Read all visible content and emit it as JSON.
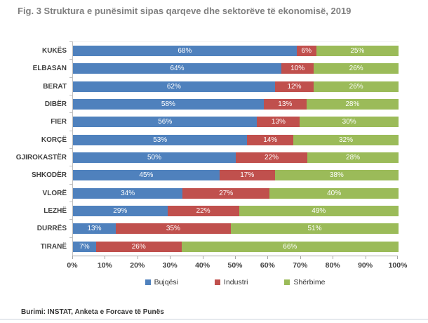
{
  "figure": {
    "title": "Fig. 3 Struktura e punësimit sipas qarqeve dhe sektorëve të ekonomisë, 2019",
    "source": "Burimi: INSTAT, Anketa e Forcave të Punës"
  },
  "colors": {
    "agriculture_blue": "#4F81BD",
    "industry_red": "#C0504D",
    "services_green": "#9BBB59",
    "title_gray": "#7F7F7F",
    "axis_line": "#A6A6A6"
  },
  "chart_data": {
    "type": "bar",
    "orientation": "horizontal",
    "stacked": true,
    "title": "Fig. 3 Struktura e punësimit sipas qarqeve dhe sektorëve të ekonomisë, 2019",
    "categories": [
      "KUKËS",
      "ELBASAN",
      "BERAT",
      "DIBËR",
      "FIER",
      "KORÇË",
      "GJIROKASTËR",
      "SHKODËR",
      "VLORË",
      "LEZHË",
      "DURRËS",
      "TIRANË"
    ],
    "series": [
      {
        "name": "Bujqësi",
        "color": "#4F81BD",
        "values": [
          68,
          64,
          62,
          58,
          56,
          53,
          50,
          45,
          34,
          29,
          13,
          7
        ]
      },
      {
        "name": "Industri",
        "color": "#C0504D",
        "values": [
          6,
          10,
          12,
          13,
          13,
          14,
          22,
          17,
          27,
          22,
          35,
          26
        ]
      },
      {
        "name": "Shërbime",
        "color": "#9BBB59",
        "values": [
          25,
          26,
          26,
          28,
          30,
          32,
          28,
          38,
          40,
          49,
          51,
          66
        ]
      }
    ],
    "x_ticks": [
      "0%",
      "10%",
      "20%",
      "30%",
      "40%",
      "50%",
      "60%",
      "70%",
      "80%",
      "90%",
      "100%"
    ],
    "xlim": [
      0,
      100
    ],
    "value_suffix": "%",
    "data_labels": "inside-white",
    "legend_position": "bottom",
    "grid": false
  }
}
